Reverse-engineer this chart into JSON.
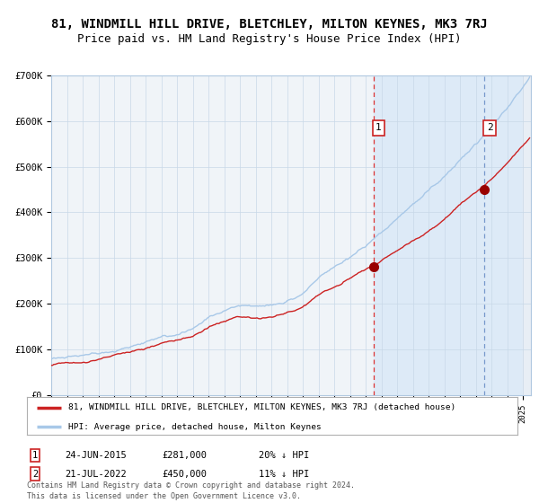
{
  "title": "81, WINDMILL HILL DRIVE, BLETCHLEY, MILTON KEYNES, MK3 7RJ",
  "subtitle": "Price paid vs. HM Land Registry's House Price Index (HPI)",
  "ylim": [
    0,
    700000
  ],
  "yticks": [
    0,
    100000,
    200000,
    300000,
    400000,
    500000,
    600000,
    700000
  ],
  "ytick_labels": [
    "£0",
    "£100K",
    "£200K",
    "£300K",
    "£400K",
    "£500K",
    "£600K",
    "£700K"
  ],
  "year_start": 1995.0,
  "year_end": 2025.5,
  "hpi_color": "#a8c8e8",
  "price_color": "#cc2222",
  "marker1_date": 2015.48,
  "marker1_price": 281000,
  "marker2_date": 2022.54,
  "marker2_price": 450000,
  "annotation1": "24-JUN-2015",
  "annotation1_price": "£281,000",
  "annotation1_hpi": "20% ↓ HPI",
  "annotation2": "21-JUL-2022",
  "annotation2_price": "£450,000",
  "annotation2_hpi": "11% ↓ HPI",
  "legend_label1": "81, WINDMILL HILL DRIVE, BLETCHLEY, MILTON KEYNES, MK3 7RJ (detached house)",
  "legend_label2": "HPI: Average price, detached house, Milton Keynes",
  "footer": "Contains HM Land Registry data © Crown copyright and database right 2024.\nThis data is licensed under the Open Government Licence v3.0.",
  "background_color": "#ffffff",
  "plot_bg_color": "#f0f4f8",
  "shade_color": "#ddeaf7",
  "grid_color": "#c8d8e8",
  "title_fontsize": 10,
  "subtitle_fontsize": 9
}
